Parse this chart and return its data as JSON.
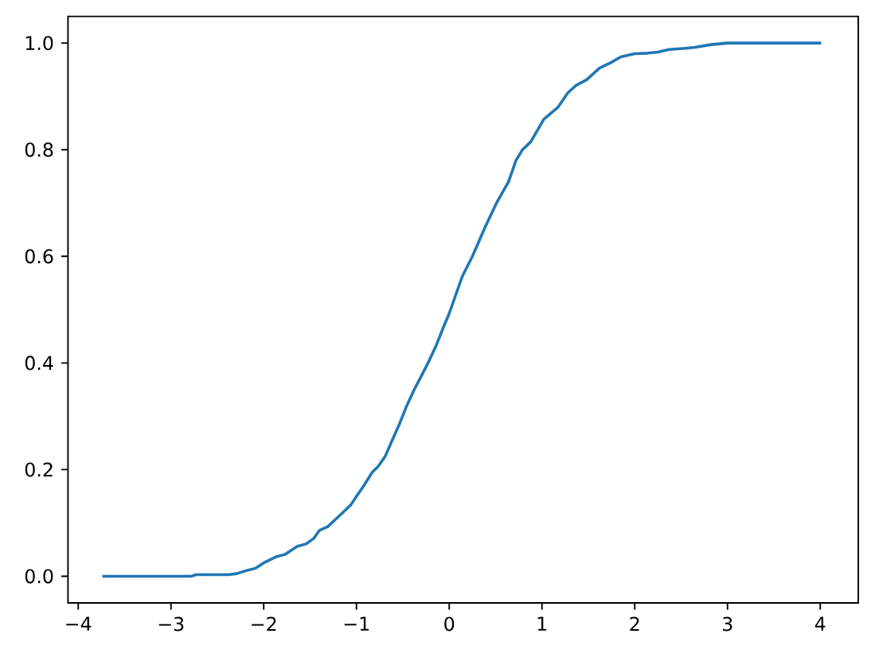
{
  "chart_data": {
    "type": "line",
    "color": "#1f77b4",
    "x": [
      -3.74,
      -2.78,
      -2.73,
      -2.38,
      -2.29,
      -2.18,
      -2.09,
      -2.0,
      -1.86,
      -1.77,
      -1.64,
      -1.54,
      -1.46,
      -1.4,
      -1.31,
      -1.18,
      -1.06,
      -1.0,
      -0.92,
      -0.83,
      -0.77,
      -0.69,
      -0.61,
      -0.54,
      -0.46,
      -0.38,
      -0.29,
      -0.22,
      -0.14,
      -0.06,
      0.0,
      0.14,
      0.25,
      0.39,
      0.51,
      0.64,
      0.72,
      0.79,
      0.88,
      1.02,
      1.17,
      1.28,
      1.37,
      1.48,
      1.62,
      1.74,
      1.85,
      2.0,
      2.14,
      2.25,
      2.37,
      2.54,
      2.65,
      2.82,
      3.0,
      4.01
    ],
    "values": [
      0.0,
      0.0,
      0.003,
      0.003,
      0.005,
      0.011,
      0.015,
      0.025,
      0.037,
      0.041,
      0.056,
      0.061,
      0.071,
      0.086,
      0.093,
      0.114,
      0.134,
      0.15,
      0.17,
      0.195,
      0.205,
      0.225,
      0.257,
      0.284,
      0.319,
      0.349,
      0.379,
      0.403,
      0.433,
      0.468,
      0.493,
      0.562,
      0.6,
      0.656,
      0.7,
      0.74,
      0.78,
      0.8,
      0.815,
      0.857,
      0.879,
      0.907,
      0.921,
      0.931,
      0.953,
      0.963,
      0.974,
      0.98,
      0.981,
      0.983,
      0.988,
      0.99,
      0.992,
      0.997,
      1.0,
      1.0
    ],
    "xlim": [
      -4.11,
      4.41
    ],
    "ylim": [
      -0.05,
      1.05
    ],
    "xticks": [
      {
        "value": -4,
        "label": "−4"
      },
      {
        "value": -3,
        "label": "−3"
      },
      {
        "value": -2,
        "label": "−2"
      },
      {
        "value": -1,
        "label": "−1"
      },
      0,
      1,
      2,
      3,
      4
    ],
    "yticks": [
      {
        "value": 0,
        "label": "0.0"
      },
      {
        "value": 0.2,
        "label": "0.2"
      },
      {
        "value": 0.4,
        "label": "0.4"
      },
      {
        "value": 0.6,
        "label": "0.6"
      },
      {
        "value": 0.8,
        "label": "0.8"
      },
      {
        "value": 1,
        "label": "1.0"
      }
    ]
  }
}
